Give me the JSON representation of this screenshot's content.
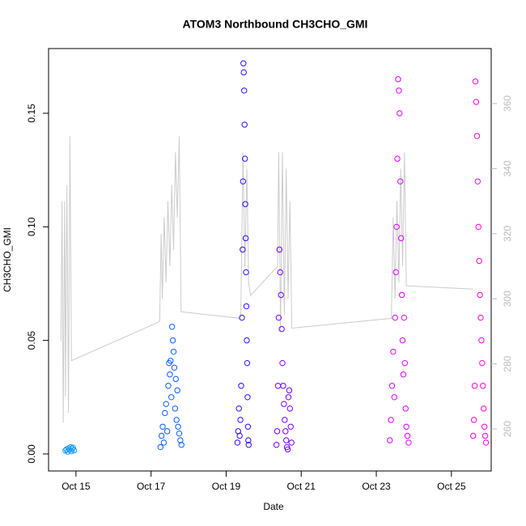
{
  "chart_data": {
    "type": "scatter",
    "title": "ATOM3 Northbound CH3CHO_GMI",
    "x_label": "Date",
    "y_label": "CH3CHO_GMI",
    "xlim": [
      14.27,
      26.06
    ],
    "xticks": [
      {
        "value": 15,
        "label": "Oct 15"
      },
      {
        "value": 17,
        "label": "Oct 17"
      },
      {
        "value": 19,
        "label": "Oct 19"
      },
      {
        "value": 21,
        "label": "Oct 21"
      },
      {
        "value": 23,
        "label": "Oct 23"
      },
      {
        "value": 25,
        "label": "Oct 25"
      }
    ],
    "ylim": [
      -0.0075,
      0.1785
    ],
    "yticks": [
      {
        "value": 0,
        "label": "0.00"
      },
      0.05,
      {
        "value": 0.1,
        "label": "0.10"
      },
      0.15
    ],
    "y2lim": [
      247.1,
      376.9
    ],
    "y2ticks": [
      260,
      280,
      300,
      320,
      340,
      360
    ],
    "y2_color": "#bbbbbb",
    "series": [
      {
        "color": "#cccccc",
        "axis": "y2",
        "style": "line",
        "x": [
          14.6,
          14.63,
          14.66,
          14.7,
          14.72,
          14.76,
          14.8,
          14.84,
          14.88,
          17.23,
          17.27,
          17.3,
          17.35,
          17.4,
          17.45,
          17.5,
          17.55,
          17.6,
          17.65,
          17.7,
          17.75,
          17.8,
          19.39,
          19.45,
          19.5,
          19.55,
          19.6,
          19.65,
          20.37,
          20.4,
          20.45,
          20.5,
          20.55,
          20.6,
          20.65,
          20.7,
          20.75,
          23.4,
          23.45,
          23.5,
          23.55,
          23.6,
          23.65,
          23.7,
          23.75,
          23.8,
          25.58
        ],
        "values": [
          287,
          330,
          262,
          330,
          270,
          335,
          265,
          350,
          281,
          293,
          320,
          300,
          325,
          305,
          330,
          310,
          335,
          315,
          345,
          325,
          350,
          296,
          294,
          345,
          310,
          340,
          305,
          301,
          310,
          345,
          290,
          345,
          295,
          340,
          300,
          330,
          291,
          294,
          325,
          300,
          330,
          305,
          340,
          310,
          345,
          304,
          303
        ]
      },
      {
        "color": "#1a9bef",
        "style": "points",
        "x": [
          14.72,
          14.75,
          14.78,
          14.8,
          14.83,
          14.86,
          14.88,
          14.9,
          14.92,
          14.95
        ],
        "values": [
          0.0015,
          0.002,
          0.001,
          0.0025,
          0.0018,
          0.003,
          0.0012,
          0.0022,
          0.0028,
          0.0016
        ]
      },
      {
        "color": "#0a5cff",
        "style": "points",
        "x": [
          17.25,
          17.28,
          17.31,
          17.34,
          17.37,
          17.4,
          17.43,
          17.46,
          17.48,
          17.5,
          17.52,
          17.54,
          17.56,
          17.58,
          17.6,
          17.62,
          17.64,
          17.66,
          17.68,
          17.7,
          17.72,
          17.75,
          17.78,
          17.81
        ],
        "values": [
          0.003,
          0.008,
          0.012,
          0.005,
          0.018,
          0.022,
          0.01,
          0.03,
          0.04,
          0.035,
          0.041,
          0.025,
          0.056,
          0.05,
          0.045,
          0.038,
          0.02,
          0.033,
          0.015,
          0.028,
          0.012,
          0.009,
          0.006,
          0.004
        ]
      },
      {
        "color": "#2a0fff",
        "style": "points",
        "x": [
          19.3,
          19.32,
          19.34,
          19.36,
          19.38,
          19.4,
          19.42,
          19.44,
          19.45,
          19.46,
          19.47,
          19.48,
          19.49,
          19.5,
          19.51,
          19.52,
          19.53,
          19.54,
          19.55,
          19.56,
          19.57,
          19.58,
          19.59,
          19.6
        ],
        "values": [
          0.005,
          0.01,
          0.02,
          0.008,
          0.015,
          0.03,
          0.06,
          0.09,
          0.12,
          0.172,
          0.168,
          0.16,
          0.145,
          0.13,
          0.11,
          0.095,
          0.08,
          0.065,
          0.05,
          0.04,
          0.025,
          0.012,
          0.006,
          0.004
        ]
      },
      {
        "color": "#7400ff",
        "style": "points",
        "x": [
          20.34,
          20.36,
          20.38,
          20.4,
          20.42,
          20.44,
          20.46,
          20.48,
          20.5,
          20.52,
          20.54,
          20.56,
          20.58,
          20.6,
          20.62,
          20.64,
          20.66,
          20.68,
          20.7,
          20.72,
          20.74
        ],
        "values": [
          0.004,
          0.01,
          0.03,
          0.06,
          0.09,
          0.08,
          0.07,
          0.055,
          0.04,
          0.03,
          0.022,
          0.015,
          0.01,
          0.006,
          0.003,
          0.002,
          0.025,
          0.028,
          0.02,
          0.012,
          0.005
        ]
      },
      {
        "color": "#dc00ff",
        "style": "points",
        "x": [
          23.36,
          23.39,
          23.42,
          23.45,
          23.48,
          23.5,
          23.52,
          23.54,
          23.56,
          23.58,
          23.6,
          23.62,
          23.64,
          23.66,
          23.68,
          23.7,
          23.72,
          23.74,
          23.76,
          23.78,
          23.8,
          23.83,
          23.86
        ],
        "values": [
          0.006,
          0.015,
          0.03,
          0.045,
          0.025,
          0.06,
          0.08,
          0.1,
          0.13,
          0.165,
          0.16,
          0.15,
          0.12,
          0.095,
          0.07,
          0.05,
          0.035,
          0.06,
          0.04,
          0.02,
          0.012,
          0.008,
          0.005
        ]
      },
      {
        "color": "#ff00dc",
        "style": "points",
        "x": [
          25.58,
          25.6,
          25.62,
          25.64,
          25.66,
          25.68,
          25.7,
          25.72,
          25.74,
          25.76,
          25.78,
          25.8,
          25.82,
          25.84,
          25.86,
          25.88,
          25.9,
          25.92
        ],
        "values": [
          0.008,
          0.015,
          0.03,
          0.164,
          0.155,
          0.14,
          0.12,
          0.1,
          0.085,
          0.07,
          0.06,
          0.05,
          0.04,
          0.03,
          0.02,
          0.012,
          0.008,
          0.005
        ]
      }
    ]
  }
}
